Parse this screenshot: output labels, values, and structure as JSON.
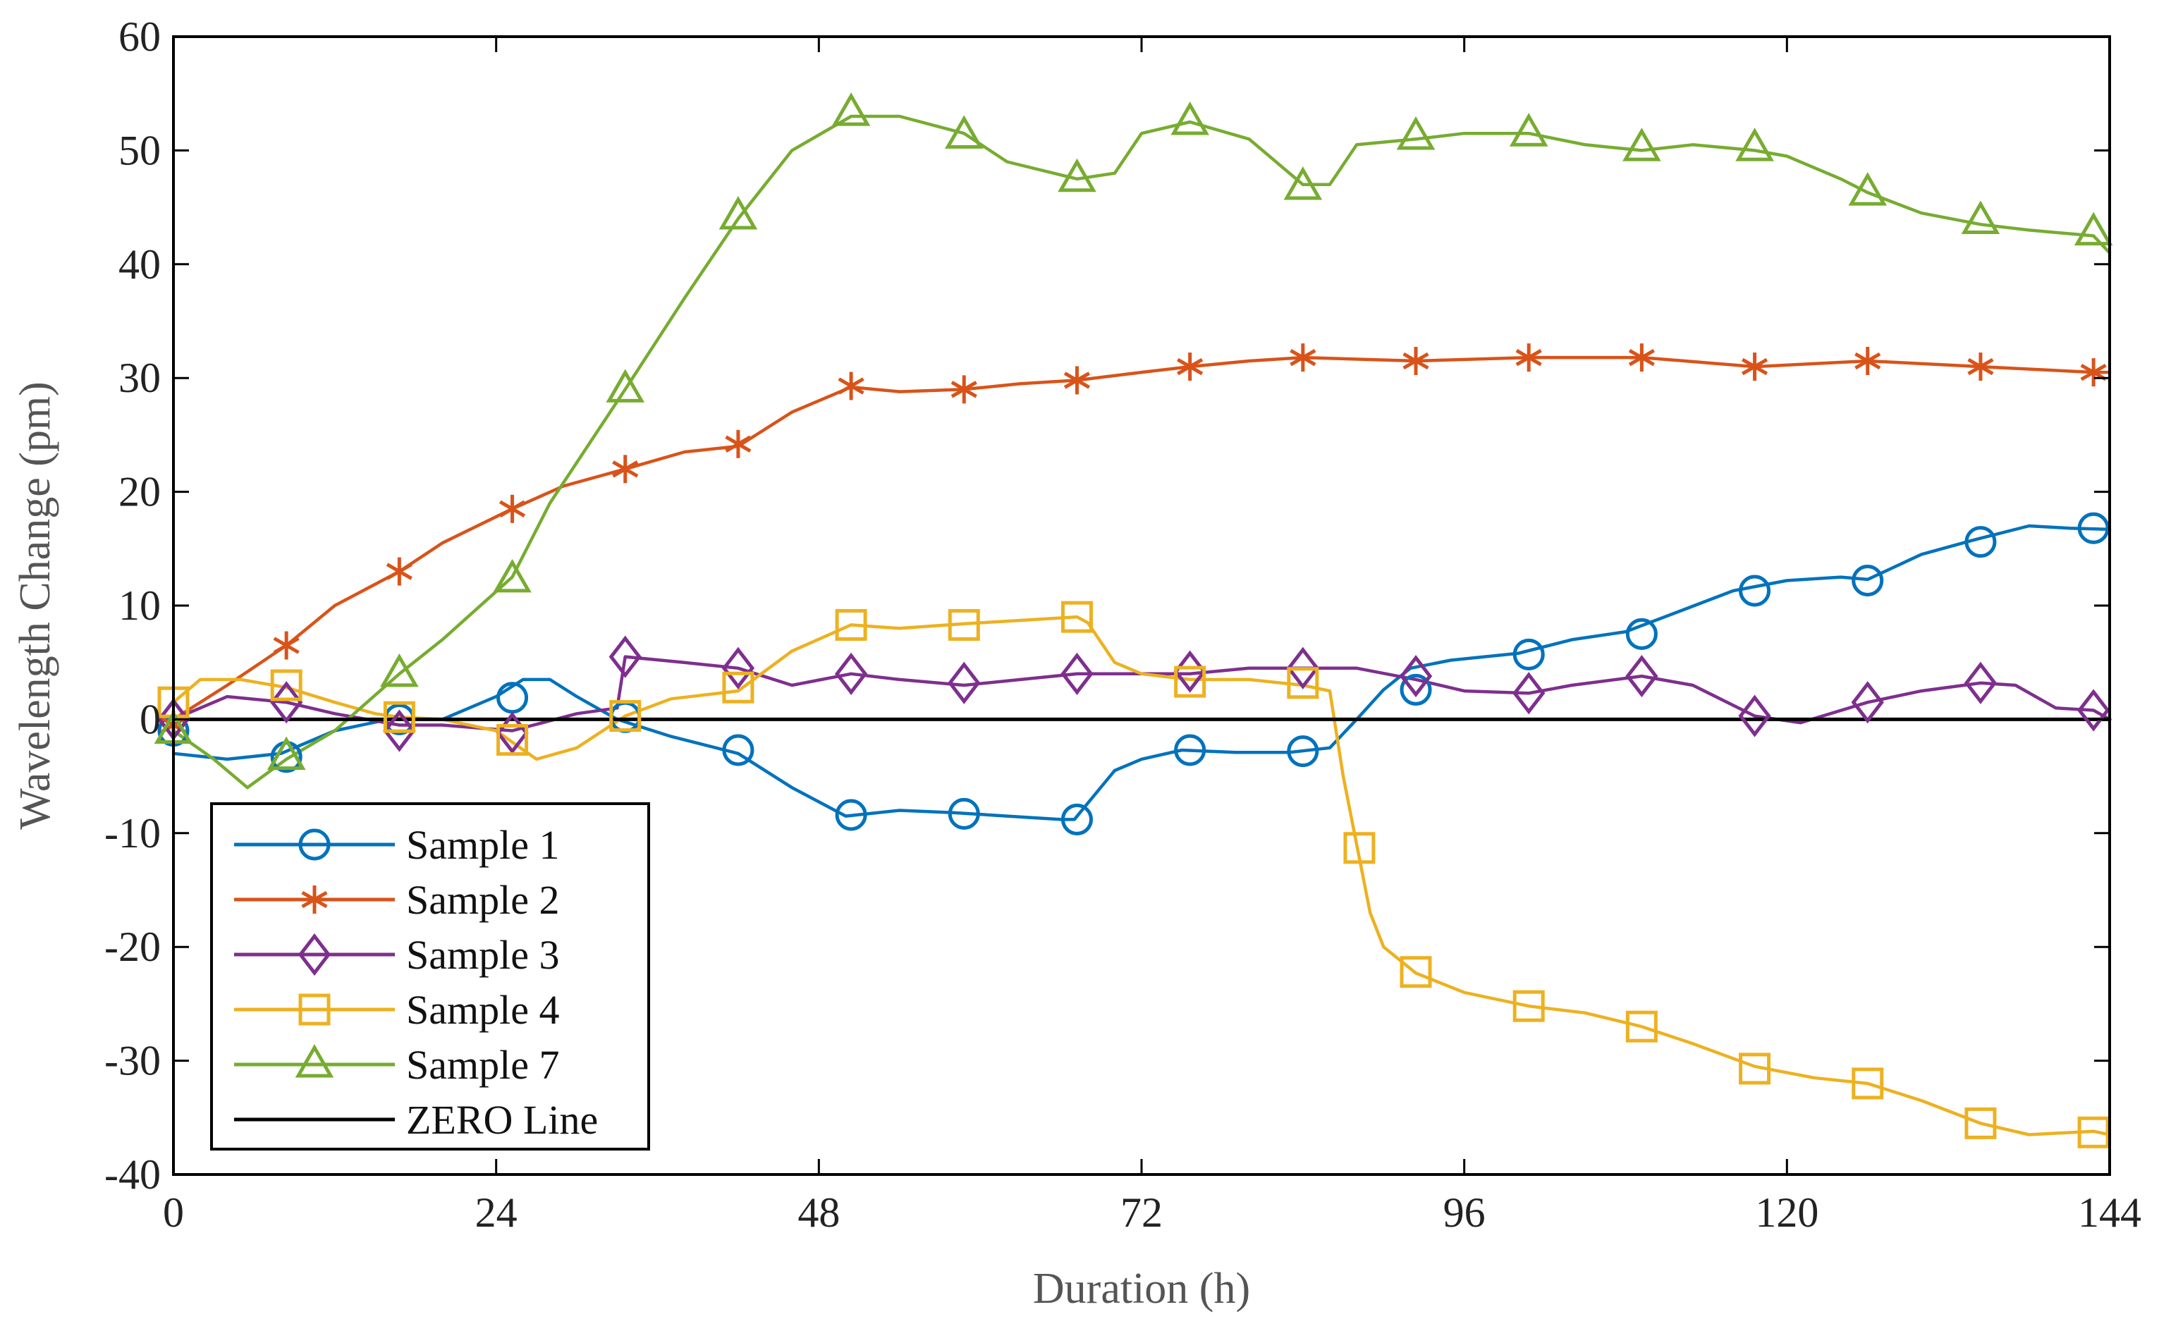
{
  "chart_data": {
    "type": "line",
    "title": "",
    "xlabel": "Duration (h)",
    "ylabel": "Wavelength Change (pm)",
    "xlim": [
      0,
      144
    ],
    "ylim": [
      -40,
      60
    ],
    "xticks": [
      0,
      24,
      48,
      72,
      96,
      120,
      144
    ],
    "yticks": [
      -40,
      -30,
      -20,
      -10,
      0,
      10,
      20,
      30,
      40,
      50,
      60
    ],
    "legend_position": "bottom-left",
    "series": [
      {
        "name": "Sample 1",
        "color": "#0072BD",
        "marker": "circle",
        "x": [
          0,
          4,
          8,
          12,
          16,
          20,
          24,
          26,
          28,
          30,
          33,
          37,
          42,
          46,
          50,
          54,
          58,
          62,
          66,
          67,
          70,
          72,
          75,
          79,
          83,
          86,
          88,
          90,
          92,
          95,
          100,
          104,
          108,
          112,
          116,
          120,
          124,
          126,
          130,
          134,
          138,
          141,
          144
        ],
        "y": [
          -3,
          -3.5,
          -3,
          -1,
          0,
          0,
          2,
          3.5,
          3.5,
          2,
          0,
          -1.5,
          -3,
          -6,
          -8.5,
          -8,
          -8.2,
          -8.5,
          -8.8,
          -8.8,
          -4.5,
          -3.5,
          -2.7,
          -2.9,
          -2.9,
          -2.5,
          0,
          2.6,
          4.5,
          5.2,
          5.8,
          7,
          7.7,
          9.5,
          11.3,
          12.2,
          12.5,
          12.3,
          14.5,
          15.8,
          17,
          16.8,
          16.7
        ],
        "markers_x": [
          0,
          8.4,
          16.8,
          25.2,
          33.6,
          42,
          50.4,
          58.8,
          67.2,
          75.6,
          84,
          92.4,
          100.8,
          109.2,
          117.6,
          126,
          134.4,
          142.8
        ],
        "markers_y": [
          -1,
          -3.3,
          0,
          1.9,
          0.2,
          -2.7,
          -8.4,
          -8.3,
          -8.8,
          -2.7,
          -2.8,
          2.6,
          5.7,
          7.5,
          11.3,
          12.2,
          15.6,
          16.8
        ]
      },
      {
        "name": "Sample 2",
        "color": "#D95319",
        "marker": "asterisk",
        "x": [
          0,
          4,
          8.4,
          12,
          16.8,
          20,
          25.2,
          29,
          33.6,
          38,
          42,
          46,
          50.4,
          54,
          58.8,
          63,
          67.2,
          72,
          75.6,
          80,
          84,
          92.4,
          100.8,
          109.2,
          117.6,
          126,
          134.4,
          142.8,
          144
        ],
        "y": [
          0,
          3,
          6.5,
          10,
          13,
          15.5,
          18.5,
          20.5,
          22,
          23.5,
          24,
          27,
          29.2,
          28.8,
          29,
          29.5,
          29.8,
          30.5,
          31,
          31.5,
          31.8,
          31.5,
          31.8,
          31.8,
          31,
          31.5,
          31,
          30.5,
          30.5
        ],
        "markers_x": [
          0,
          8.4,
          16.8,
          25.2,
          33.6,
          42,
          50.4,
          58.8,
          67.2,
          75.6,
          84,
          92.4,
          100.8,
          109.2,
          117.6,
          126,
          134.4,
          142.8
        ],
        "markers_y": [
          -0.5,
          6.5,
          13,
          18.5,
          22,
          24.2,
          29.3,
          29,
          29.8,
          31,
          31.8,
          31.5,
          31.8,
          31.8,
          31,
          31.5,
          31,
          30.5
        ]
      },
      {
        "name": "Sample 3",
        "color": "#7E2F8E",
        "marker": "diamond",
        "x": [
          0,
          4,
          8.4,
          12,
          16.8,
          20,
          25.2,
          30,
          33,
          33.6,
          38,
          42,
          46,
          50.4,
          54,
          58.8,
          63,
          67.2,
          72,
          75.6,
          80,
          84,
          88,
          92.4,
          96,
          100.8,
          104,
          109.2,
          113,
          117.6,
          121,
          126,
          130,
          134.4,
          137,
          140,
          142.8,
          144
        ],
        "y": [
          0,
          2,
          1.5,
          0.5,
          -0.5,
          -0.5,
          -1,
          0.5,
          1,
          5.5,
          5,
          4.5,
          3,
          4,
          3.5,
          3,
          3.5,
          4,
          4,
          4,
          4.5,
          4.5,
          4.5,
          3.5,
          2.5,
          2.3,
          3,
          3.8,
          3,
          0.3,
          -0.3,
          1.5,
          2.5,
          3.2,
          3,
          1,
          0.8,
          0
        ],
        "markers_x": [
          0,
          8.4,
          16.8,
          25.2,
          33.6,
          42,
          50.4,
          58.8,
          67.2,
          75.6,
          84,
          92.4,
          100.8,
          109.2,
          117.6,
          126,
          134.4,
          142.8
        ],
        "markers_y": [
          0,
          1.5,
          -1,
          -1.2,
          5.5,
          4.5,
          4,
          3.2,
          4,
          4.2,
          4.5,
          3.8,
          2.3,
          3.8,
          0.3,
          1.5,
          3.2,
          0.8
        ]
      },
      {
        "name": "Sample 4",
        "color": "#EDB120",
        "marker": "square",
        "x": [
          0,
          2,
          5,
          8.4,
          12,
          15,
          16.8,
          20,
          24,
          25.2,
          27,
          30,
          33.6,
          37,
          42,
          46,
          50.4,
          54,
          58.8,
          63,
          67.2,
          68,
          70,
          72,
          75.6,
          80,
          84,
          86,
          87,
          88,
          89,
          90,
          92.4,
          96,
          100.8,
          105,
          109.2,
          113,
          117.6,
          122,
          126,
          130,
          134.4,
          138,
          142.8,
          144
        ],
        "y": [
          1.5,
          3.5,
          3.5,
          2.8,
          1.5,
          0.5,
          0.2,
          0,
          -1,
          -2,
          -3.5,
          -2.5,
          0.3,
          1.8,
          2.5,
          6,
          8.3,
          8,
          8.4,
          8.7,
          9,
          8.5,
          5,
          4,
          3.5,
          3.5,
          3,
          2.5,
          -5,
          -11,
          -17,
          -20,
          -22.3,
          -24,
          -25.2,
          -25.8,
          -27,
          -28.5,
          -30.5,
          -31.5,
          -32,
          -33.5,
          -35.5,
          -36.5,
          -36.2,
          -36.5
        ],
        "markers_x": [
          0,
          8.4,
          16.8,
          25.2,
          33.6,
          42,
          50.4,
          58.8,
          67.2,
          75.6,
          84,
          88.2,
          92.4,
          100.8,
          109.2,
          117.6,
          126,
          134.4,
          142.8
        ],
        "markers_y": [
          1.5,
          3,
          0.2,
          -1.8,
          0.3,
          2.8,
          8.3,
          8.3,
          9,
          3.3,
          3.2,
          -11.3,
          -22.2,
          -25.2,
          -27,
          -30.7,
          -32,
          -35.5,
          -36.3
        ]
      },
      {
        "name": "Sample 7",
        "color": "#77AC30",
        "marker": "triangle",
        "x": [
          0,
          3,
          5.5,
          8.4,
          12,
          16.8,
          20,
          25.2,
          28,
          33.6,
          38,
          42,
          46,
          50.4,
          54,
          58.8,
          62,
          67.2,
          70,
          72,
          75.6,
          80,
          84,
          86,
          88,
          92.4,
          96,
          100.8,
          105,
          109.2,
          113,
          117.6,
          120,
          124,
          126,
          130,
          134.4,
          138,
          142.8,
          144
        ],
        "y": [
          -1,
          -3.5,
          -6,
          -3.5,
          -1,
          4,
          7,
          12.5,
          19,
          29,
          37,
          44,
          50,
          53,
          53,
          51.5,
          49,
          47.5,
          48,
          51.5,
          52.5,
          51,
          47,
          47,
          50.5,
          51,
          51.5,
          51.5,
          50.5,
          50,
          50.5,
          50,
          49.5,
          47.5,
          46.3,
          44.5,
          43.5,
          43,
          42.5,
          41
        ],
        "markers_x": [
          0,
          8.4,
          16.8,
          25.2,
          33.6,
          42,
          50.4,
          58.8,
          67.2,
          75.6,
          84,
          92.4,
          100.8,
          109.2,
          117.6,
          126,
          134.4,
          142.8
        ],
        "markers_y": [
          -1,
          -3.3,
          4,
          12.3,
          29,
          44.2,
          53.3,
          51.3,
          47.5,
          52.5,
          46.8,
          51.2,
          51.5,
          50.2,
          50.2,
          46.3,
          43.8,
          42.8
        ]
      },
      {
        "name": "ZERO Line",
        "color": "#000000",
        "marker": "none",
        "x": [
          0,
          144
        ],
        "y": [
          0,
          0
        ]
      }
    ]
  }
}
